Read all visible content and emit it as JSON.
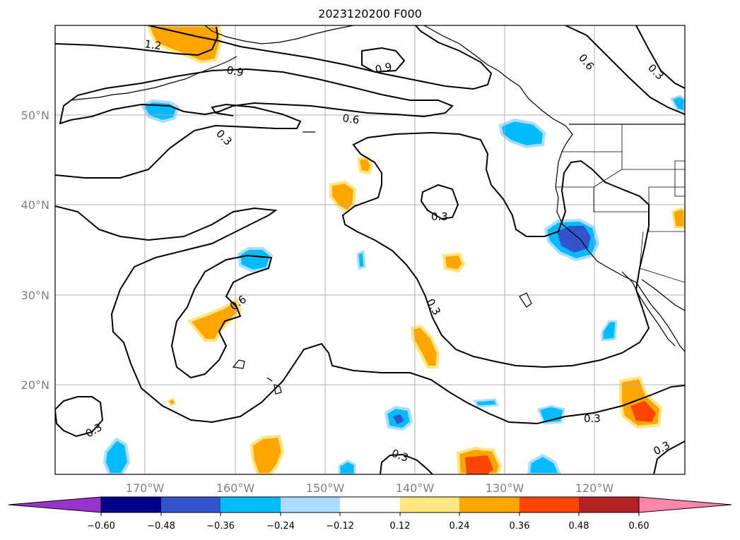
{
  "title": "2023120200 F000",
  "map": {
    "lon_range": [
      -180,
      -110
    ],
    "lat_range": [
      10,
      60
    ],
    "grid_lines": true,
    "lat_ticks": [
      "20°N",
      "30°N",
      "40°N",
      "50°N"
    ],
    "lon_ticks": [
      "170°W",
      "160°W",
      "150°W",
      "140°W",
      "130°W",
      "120°W"
    ],
    "contour_labels": [
      "1.2",
      "0.9",
      "0.9",
      "0.6",
      "0.6",
      "0.6",
      "0.3",
      "0.3",
      "0.3",
      "0.3",
      "0.3",
      "0.3",
      "0.3",
      "0.3"
    ]
  },
  "colorbar": {
    "ticks": [
      "−0.60",
      "−0.48",
      "−0.36",
      "−0.24",
      "−0.12",
      "0.12",
      "0.24",
      "0.36",
      "0.48",
      "0.60"
    ],
    "colors": [
      "#9933cc",
      "#00008b",
      "#3355cc",
      "#00bbff",
      "#aaddff",
      "#ffffff",
      "#ffe680",
      "#ffa500",
      "#ff4500",
      "#b22222",
      "#ff88aa"
    ],
    "extend": "both"
  },
  "colors": {
    "land_outline": "#000000",
    "grid": "#b0b0b0",
    "contour": "#000000"
  }
}
